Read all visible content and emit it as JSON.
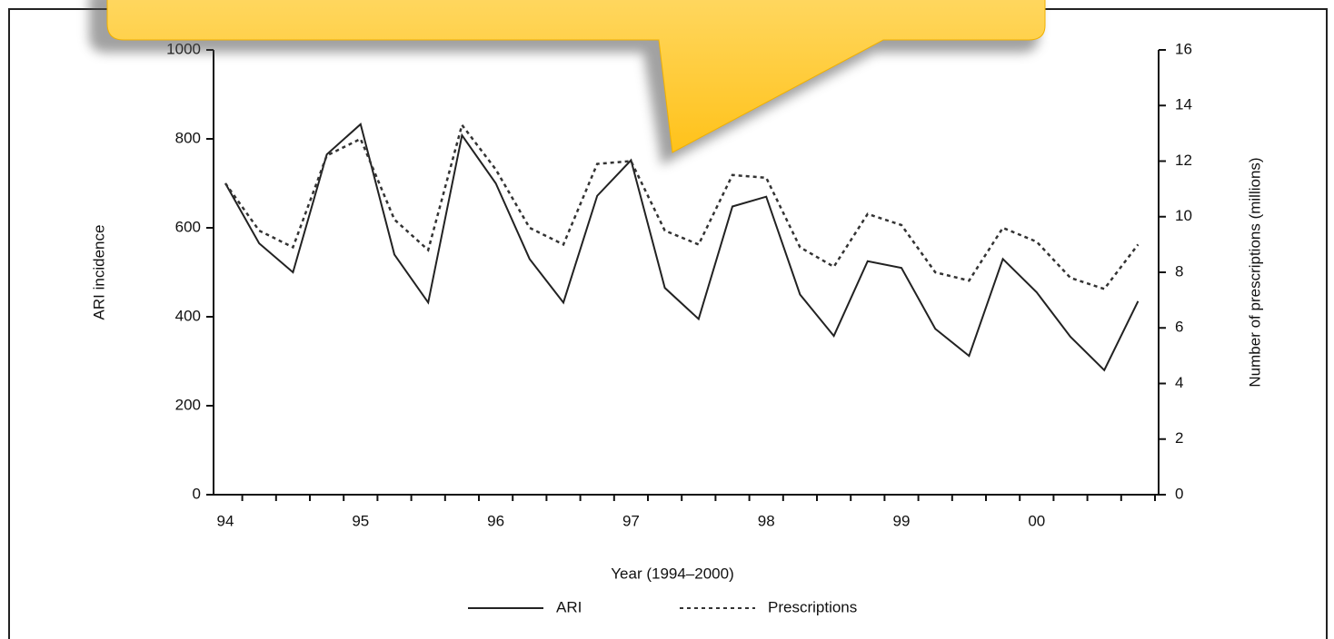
{
  "chart_data": {
    "type": "line",
    "x_label": "Year (1994–2000)",
    "y_label": "ARI incidence",
    "y2_label": "Number of prescriptions (millions)",
    "categories": [
      "94",
      null,
      null,
      null,
      "95",
      null,
      null,
      null,
      "96",
      null,
      null,
      null,
      "97",
      null,
      null,
      null,
      "98",
      null,
      null,
      null,
      "99",
      null,
      null,
      null,
      "00",
      null,
      null,
      null
    ],
    "ylim": [
      0,
      1000
    ],
    "yticks": [
      0,
      200,
      400,
      600,
      800,
      1000
    ],
    "y2lim": [
      0,
      16
    ],
    "y2ticks": [
      0,
      2,
      4,
      6,
      8,
      10,
      12,
      14,
      16
    ],
    "series": [
      {
        "name": "ARI",
        "color": "#222222",
        "line_style": "solid",
        "values": [
          700,
          565,
          500,
          765,
          833,
          540,
          432,
          808,
          700,
          530,
          432,
          672,
          752,
          465,
          395,
          648,
          670,
          450,
          357,
          525,
          510,
          373,
          312,
          530,
          455,
          355,
          280,
          435
        ]
      },
      {
        "name": "Prescriptions",
        "color": "#333333",
        "line_style": "dotted",
        "axis": "y2",
        "values": [
          11.2,
          9.5,
          8.9,
          12.2,
          12.8,
          9.9,
          8.8,
          13.3,
          11.7,
          9.6,
          9.0,
          11.9,
          12.0,
          9.5,
          9.0,
          11.5,
          11.4,
          8.9,
          8.2,
          10.1,
          9.7,
          8.0,
          7.7,
          9.6,
          9.1,
          7.8,
          7.4,
          9.0
        ]
      }
    ]
  }
}
